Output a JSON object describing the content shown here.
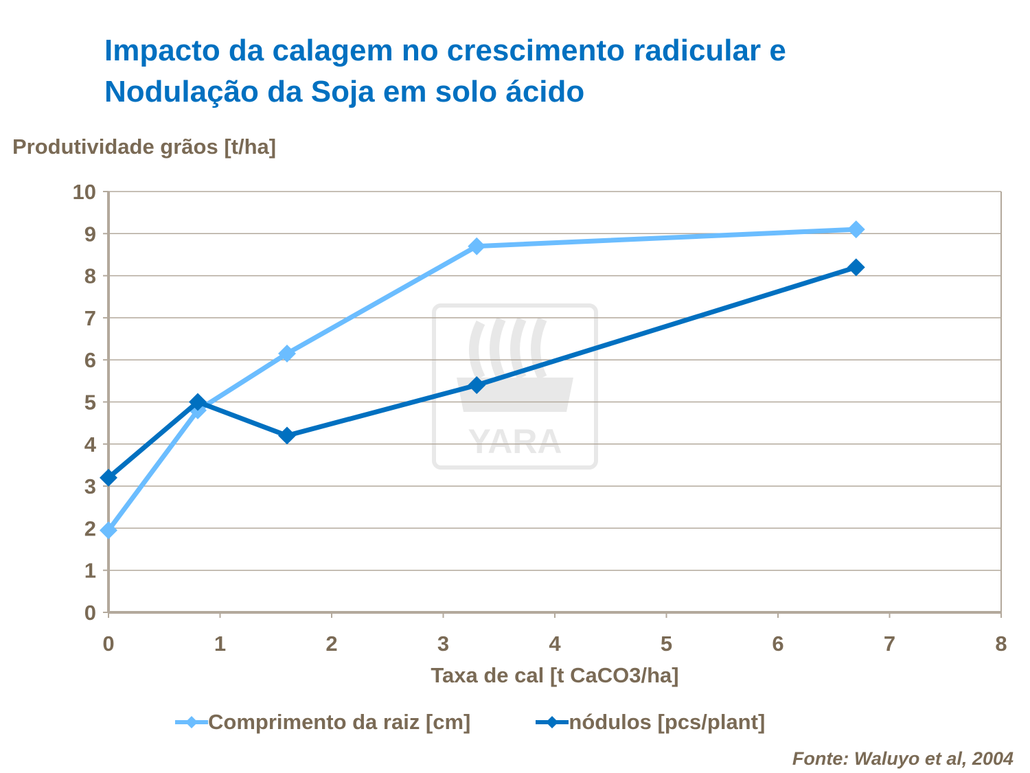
{
  "title_lines": [
    "Impacto da calagem no crescimento radicular e",
    "Nodulação da Soja em solo ácido"
  ],
  "source": "Fonte: Waluyo et al, 2004",
  "watermark": "YARA",
  "chart_data": {
    "type": "line",
    "title": "Impacto da calagem no crescimento radicular e Nodulação da Soja em solo ácido",
    "xlabel": "Taxa de cal [t CaCO3/ha]",
    "ylabel": "Produtividade grãos [t/ha]",
    "xlim": [
      0,
      8
    ],
    "ylim": [
      0,
      10
    ],
    "xticks": [
      "0",
      "1",
      "2",
      "3",
      "4",
      "5",
      "6",
      "7",
      "8"
    ],
    "yticks": [
      "0",
      "1",
      "2",
      "3",
      "4",
      "5",
      "6",
      "7",
      "8",
      "9",
      "10"
    ],
    "grid": "horizontal",
    "legend_position": "bottom",
    "x": [
      0,
      0.8,
      1.6,
      3.3,
      6.7
    ],
    "series": [
      {
        "name": "Comprimento da raiz [cm]",
        "color": "#6bbdff",
        "marker": "diamond",
        "values": [
          1.95,
          4.8,
          6.15,
          8.7,
          9.1
        ]
      },
      {
        "name": "nódulos [pcs/plant]",
        "color": "#0070c0",
        "marker": "diamond",
        "values": [
          3.2,
          5.0,
          4.2,
          5.4,
          8.2
        ]
      }
    ]
  }
}
